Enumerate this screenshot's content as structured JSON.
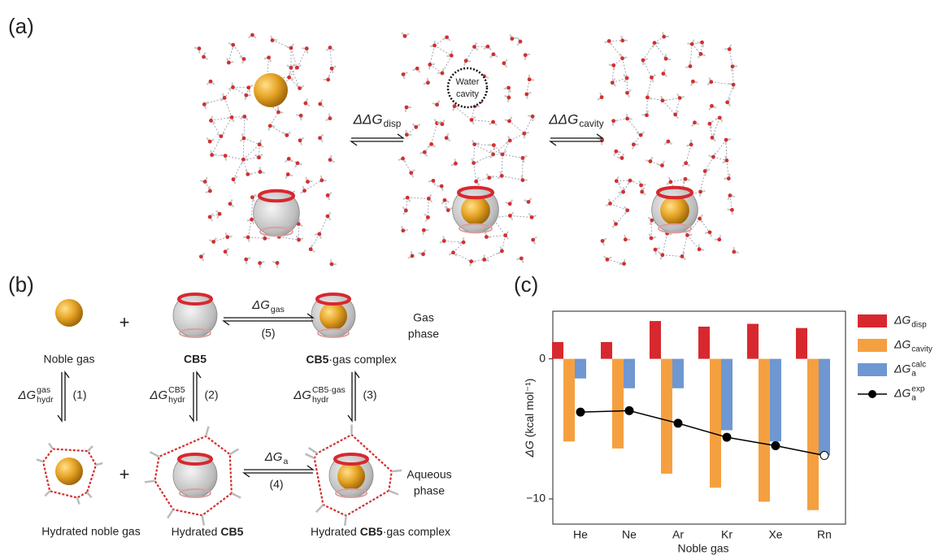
{
  "panel_a": {
    "label": "(a)",
    "step1": {
      "main": "ΔΔG",
      "sub": "disp"
    },
    "step2": {
      "main": "ΔΔG",
      "sub": "cavity"
    },
    "cavity_label": [
      "Water",
      "cavity"
    ]
  },
  "panel_b": {
    "label": "(b)",
    "plus": "+",
    "noble_gas": "Noble gas",
    "cb5": "CB5",
    "complex": [
      "CB5",
      "·gas complex"
    ],
    "gas_phase": [
      "Gas",
      "phase"
    ],
    "aqueous_phase": [
      "Aqueous",
      "phase"
    ],
    "hydrated_gas": "Hydrated noble gas",
    "hydrated_cb5": [
      "Hydrated ",
      "CB5"
    ],
    "hydrated_complex": [
      "Hydrated ",
      "CB5",
      "·gas complex"
    ],
    "steps": [
      {
        "main": "ΔG",
        "sub": "hydr",
        "sup": "gas",
        "num": "(1)"
      },
      {
        "main": "ΔG",
        "sub": "hydr",
        "sup": "CB5",
        "num": "(2)"
      },
      {
        "main": "ΔG",
        "sub": "hydr",
        "sup": "CB5·gas",
        "num": "(3)"
      },
      {
        "main": "ΔG",
        "sub": "a",
        "num": "(4)"
      },
      {
        "main": "ΔG",
        "sub": "gas",
        "num": "(5)"
      }
    ]
  },
  "chart_data": {
    "type": "bar",
    "panel_label": "(c)",
    "x_label": "Noble gas",
    "y_label": {
      "main": "ΔG",
      "unit": " (kcal mol⁻¹)"
    },
    "categories": [
      "He",
      "Ne",
      "Ar",
      "Kr",
      "Xe",
      "Rn"
    ],
    "ylim": [
      -11.8,
      3.4
    ],
    "yticks": [
      {
        "value": -10,
        "label": "−10"
      },
      0
    ],
    "series": [
      {
        "name": "ΔG",
        "sub": "disp",
        "color": "#d7282f",
        "values": [
          1.2,
          1.2,
          2.7,
          2.3,
          2.5,
          2.2
        ]
      },
      {
        "name": "ΔG",
        "sub": "cavity",
        "color": "#f5a040",
        "values": [
          -5.9,
          -6.4,
          -8.2,
          -9.2,
          -10.2,
          -10.8
        ]
      },
      {
        "name": "ΔG",
        "sub": "a",
        "sup": "calc",
        "color": "#6f97d1",
        "values": [
          -1.4,
          -2.1,
          -2.1,
          -5.1,
          -5.9,
          -6.9
        ]
      },
      {
        "name": "ΔG",
        "sub": "a",
        "sup": "exp",
        "color": "#000000",
        "type": "line",
        "values": [
          -3.8,
          -3.7,
          -4.6,
          -5.6,
          -6.2,
          -6.9
        ]
      }
    ]
  }
}
